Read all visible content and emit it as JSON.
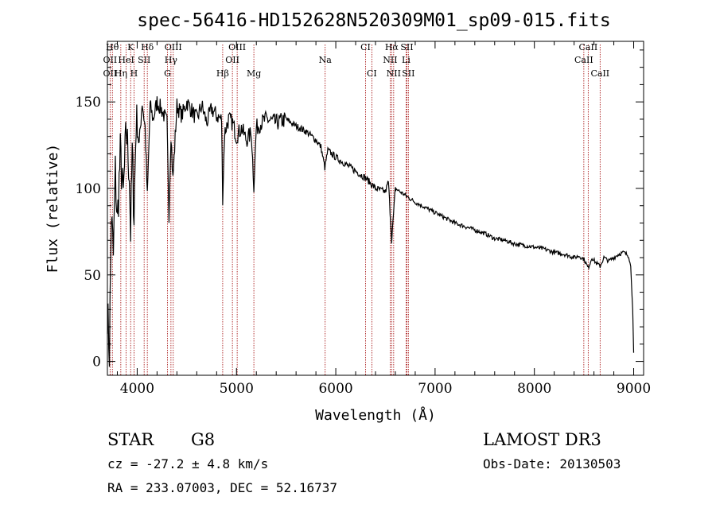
{
  "chart_data": {
    "type": "line",
    "title": "spec-56416-HD152628N520309M01_sp09-015.fits",
    "xlabel": "Wavelength (Å)",
    "ylabel": "Flux (relative)",
    "xlim": [
      3700,
      9100
    ],
    "ylim": [
      -8,
      185
    ],
    "xticks": [
      4000,
      5000,
      6000,
      7000,
      8000,
      9000
    ],
    "yticks": [
      0,
      50,
      100,
      150
    ],
    "series": [
      {
        "name": "Flux",
        "x": [
          3700,
          3720,
          3740,
          3760,
          3780,
          3800,
          3830,
          3860,
          3890,
          3920,
          3934,
          3950,
          3968,
          3990,
          4020,
          4050,
          4080,
          4102,
          4130,
          4160,
          4200,
          4250,
          4300,
          4320,
          4340,
          4360,
          4400,
          4450,
          4500,
          4550,
          4600,
          4650,
          4700,
          4750,
          4800,
          4850,
          4861,
          4880,
          4920,
          4960,
          5000,
          5050,
          5100,
          5150,
          5175,
          5200,
          5250,
          5300,
          5400,
          5500,
          5600,
          5700,
          5800,
          5850,
          5890,
          5920,
          6000,
          6100,
          6200,
          6300,
          6400,
          6500,
          6530,
          6563,
          6600,
          6700,
          6800,
          6900,
          7000,
          7100,
          7200,
          7300,
          7400,
          7500,
          7600,
          7700,
          7800,
          7900,
          8000,
          8100,
          8200,
          8300,
          8400,
          8450,
          8500,
          8542,
          8580,
          8620,
          8662,
          8700,
          8750,
          8800,
          8850,
          8900,
          8950,
          8970,
          8990,
          9000
        ],
        "y": [
          30,
          5,
          85,
          60,
          110,
          80,
          120,
          95,
          135,
          110,
          75,
          120,
          85,
          140,
          125,
          150,
          135,
          95,
          148,
          140,
          150,
          145,
          138,
          85,
          132,
          105,
          148,
          142,
          150,
          145,
          140,
          148,
          138,
          146,
          142,
          140,
          95,
          132,
          140,
          138,
          130,
          135,
          128,
          132,
          102,
          135,
          138,
          140,
          138,
          140,
          136,
          133,
          128,
          124,
          112,
          122,
          118,
          114,
          110,
          106,
          100,
          98,
          104,
          70,
          100,
          96,
          92,
          89,
          86,
          83,
          80,
          78,
          76,
          74,
          71,
          70,
          68,
          67,
          66,
          65,
          63,
          62,
          60,
          61,
          59,
          54,
          60,
          57,
          55,
          60,
          58,
          60,
          62,
          63,
          61,
          55,
          30,
          5
        ]
      }
    ],
    "lines": [
      {
        "name": "Hθ",
        "x": 3750,
        "row": 0
      },
      {
        "name": "K",
        "x": 3934,
        "row": 0
      },
      {
        "name": "Hδ",
        "x": 4102,
        "row": 0
      },
      {
        "name": "OIII",
        "x": 4363,
        "row": 0
      },
      {
        "name": "OIII",
        "x": 5007,
        "row": 0
      },
      {
        "name": "Na",
        "x": 5893,
        "row": 1
      },
      {
        "name": "CI",
        "x": 6300,
        "row": 0
      },
      {
        "name": "CI",
        "x": 6363,
        "row": 2
      },
      {
        "name": "Hα",
        "x": 6563,
        "row": 0
      },
      {
        "name": "NII",
        "x": 6548,
        "row": 1
      },
      {
        "name": "NII",
        "x": 6583,
        "row": 2
      },
      {
        "name": "SII",
        "x": 6716,
        "row": 0
      },
      {
        "name": "Li",
        "x": 6708,
        "row": 1
      },
      {
        "name": "SII",
        "x": 6731,
        "row": 2
      },
      {
        "name": "OII",
        "x": 3727,
        "row": 1
      },
      {
        "name": "HeI",
        "x": 3889,
        "row": 1
      },
      {
        "name": "SII",
        "x": 4070,
        "row": 1
      },
      {
        "name": "OII",
        "x": 3727,
        "row": 2
      },
      {
        "name": "Hη",
        "x": 3835,
        "row": 2
      },
      {
        "name": "H",
        "x": 3968,
        "row": 2
      },
      {
        "name": "Hγ",
        "x": 4340,
        "row": 1
      },
      {
        "name": "G",
        "x": 4305,
        "row": 2
      },
      {
        "name": "OII",
        "x": 4959,
        "row": 1
      },
      {
        "name": "Hβ",
        "x": 4861,
        "row": 2
      },
      {
        "name": "Mg",
        "x": 5175,
        "row": 2
      },
      {
        "name": "CaII",
        "x": 8542,
        "row": 0
      },
      {
        "name": "CaII",
        "x": 8498,
        "row": 1
      },
      {
        "name": "CaII",
        "x": 8662,
        "row": 2
      }
    ]
  },
  "info": {
    "object_class": "STAR",
    "subclass": "G8",
    "survey": "LAMOST DR3",
    "redshift": "cz = -27.2 ± 4.8 km/s",
    "obs_date": "Obs-Date: 20130503",
    "coords": "RA = 233.07003, DEC =  52.16737"
  },
  "colors": {
    "line_marker": "#a00000",
    "spectrum": "#000000"
  }
}
